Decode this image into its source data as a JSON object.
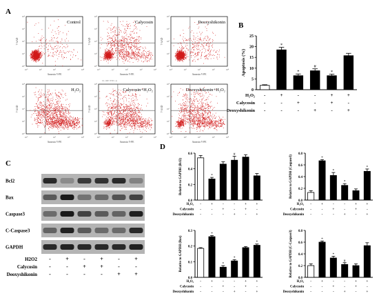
{
  "panel_labels": {
    "a": "A",
    "b": "B",
    "c": "C",
    "d": "D"
  },
  "flow": {
    "titles": [
      "Control",
      "Calycosin",
      "Deoxyshikonin",
      "H₂O₂",
      "Calycosin+H₂O₂",
      "Deoxyshikonin+H₂O₂"
    ],
    "xlabel": "Annexin V-PE",
    "ylabel": "7-AAD",
    "ticks": [
      "10⁰",
      "10¹",
      "10²",
      "10³",
      "10⁴"
    ],
    "file_label": "01-1007-FITC-A"
  },
  "treatments": {
    "h2o2": "H₂O₂",
    "calycosin": "Calycosin",
    "deoxyshikonin": "Deoxyshikonin",
    "h2o2_chem": "H2O2",
    "h2o2_pattern": [
      "-",
      "+",
      "-",
      "-",
      "+",
      "+"
    ],
    "cal_pattern": [
      "-",
      "-",
      "+",
      "-",
      "+",
      "-"
    ],
    "deo_pattern": [
      "-",
      "-",
      "-",
      "+",
      "-",
      "+"
    ],
    "wb_h2o2": [
      "-",
      "+",
      "-",
      "+",
      "-",
      "+"
    ],
    "wb_cal": [
      "-",
      "-",
      "+",
      "+",
      "-",
      "-"
    ],
    "wb_deo": [
      "-",
      "-",
      "-",
      "-",
      "+",
      "+"
    ]
  },
  "western": {
    "bands": [
      "Bcl2",
      "Bax",
      "Caspase3",
      "C-Caspase3",
      "GAPDH"
    ]
  },
  "chart_data": [
    {
      "id": "B",
      "type": "bar",
      "ylabel": "Apoptosis (%)",
      "ylim": [
        0,
        25
      ],
      "yticks": [
        "0",
        "5",
        "10",
        "15",
        "20",
        "25"
      ],
      "values": [
        2.0,
        18.5,
        6.5,
        8.8,
        6.5,
        15.8
      ],
      "errors": [
        0.3,
        1.2,
        0.8,
        0.9,
        0.7,
        1.1
      ],
      "marks": [
        "",
        "*",
        "*",
        "#",
        "*",
        ""
      ],
      "fills": [
        "#ffffff",
        "#000000",
        "#000000",
        "#000000",
        "#000000",
        "#000000"
      ]
    },
    {
      "id": "D1",
      "type": "bar",
      "ylabel": "Relative to GAPDH (Bcl2)",
      "ylim": [
        0,
        0.6
      ],
      "yticks": [
        "0.0",
        "0.2",
        "0.4",
        "0.6"
      ],
      "values": [
        0.54,
        0.27,
        0.46,
        0.51,
        0.55,
        0.31
      ],
      "errors": [
        0.03,
        0.02,
        0.03,
        0.05,
        0.03,
        0.03
      ],
      "marks": [
        "",
        "*",
        "",
        "#",
        "",
        ""
      ],
      "fills": [
        "#ffffff",
        "#000000",
        "#000000",
        "#000000",
        "#000000",
        "#000000"
      ]
    },
    {
      "id": "D2",
      "type": "bar",
      "ylabel": "Relative to GAPDH (Caspase3)",
      "ylim": [
        0,
        0.8
      ],
      "yticks": [
        "0.0",
        "0.2",
        "0.4",
        "0.6",
        "0.8"
      ],
      "values": [
        0.13,
        0.67,
        0.42,
        0.25,
        0.16,
        0.49
      ],
      "errors": [
        0.03,
        0.02,
        0.05,
        0.03,
        0.03,
        0.04
      ],
      "marks": [
        "",
        "*",
        "*",
        "*",
        "",
        "*"
      ],
      "fills": [
        "#ffffff",
        "#000000",
        "#000000",
        "#000000",
        "#000000",
        "#000000"
      ]
    },
    {
      "id": "D3",
      "type": "bar",
      "ylabel": "Relative to GAPDH (Bax)",
      "ylim": [
        0,
        0.3
      ],
      "yticks": [
        "0.0",
        "0.1",
        "0.2",
        "0.3"
      ],
      "values": [
        0.185,
        0.26,
        0.065,
        0.105,
        0.19,
        0.205
      ],
      "errors": [
        0.005,
        0.007,
        0.01,
        0.008,
        0.007,
        0.008
      ],
      "marks": [
        "",
        "*",
        "*",
        "*",
        "",
        "*"
      ],
      "fills": [
        "#ffffff",
        "#000000",
        "#000000",
        "#000000",
        "#000000",
        "#000000"
      ]
    },
    {
      "id": "D4",
      "type": "bar",
      "ylabel": "Relative to GAPDH (C-Caspase3)",
      "ylim": [
        0,
        0.8
      ],
      "yticks": [
        "0.0",
        "0.2",
        "0.4",
        "0.6",
        "0.8"
      ],
      "values": [
        0.2,
        0.6,
        0.33,
        0.22,
        0.2,
        0.54
      ],
      "errors": [
        0.03,
        0.02,
        0.03,
        0.03,
        0.03,
        0.05
      ],
      "marks": [
        "",
        "*",
        "*",
        "#",
        "",
        ""
      ],
      "fills": [
        "#ffffff",
        "#000000",
        "#000000",
        "#000000",
        "#000000",
        "#000000"
      ]
    }
  ]
}
